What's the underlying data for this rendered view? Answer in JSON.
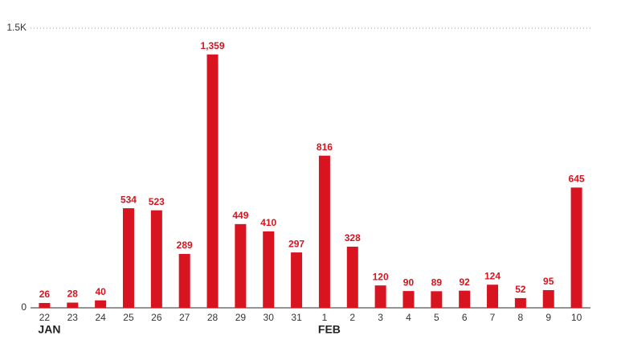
{
  "chart_data": {
    "type": "bar",
    "categories": [
      "22",
      "23",
      "24",
      "25",
      "26",
      "27",
      "28",
      "29",
      "30",
      "31",
      "1",
      "2",
      "3",
      "4",
      "5",
      "6",
      "7",
      "8",
      "9",
      "10"
    ],
    "values": [
      26,
      28,
      40,
      534,
      523,
      289,
      1359,
      449,
      410,
      297,
      816,
      328,
      120,
      90,
      89,
      92,
      124,
      52,
      95,
      645
    ],
    "value_labels": [
      "26",
      "28",
      "40",
      "534",
      "523",
      "289",
      "1,359",
      "449",
      "410",
      "297",
      "816",
      "328",
      "120",
      "90",
      "89",
      "92",
      "124",
      "52",
      "95",
      "645"
    ],
    "color": "#d7141f",
    "ylim": [
      0,
      1500
    ],
    "yticks": [
      0,
      {
        "value": 1500,
        "label": "1.5K"
      }
    ],
    "months": [
      {
        "name": "JAN",
        "first_category": "22"
      },
      {
        "name": "FEB",
        "first_category": "1"
      }
    ]
  }
}
